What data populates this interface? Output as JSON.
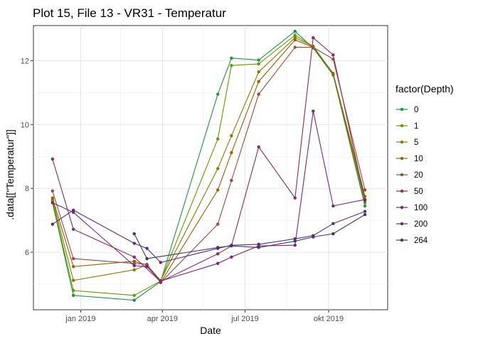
{
  "chart_data": {
    "type": "line",
    "title": "Plot 15, File 13 - VR31  -  Temperatur",
    "xlabel": "Date",
    "ylabel": ".data[[\"Temperatur\"]]",
    "legend_title": "factor(Depth)",
    "legend_position": "right",
    "grid": true,
    "xlim": [
      "2018-11-10",
      "2019-12-05"
    ],
    "ylim": [
      4.2,
      13.1
    ],
    "x_ticks": [
      {
        "date": "2019-01-01",
        "label": "jan 2019"
      },
      {
        "date": "2019-04-01",
        "label": "apr 2019"
      },
      {
        "date": "2019-07-01",
        "label": "jul 2019"
      },
      {
        "date": "2019-10-01",
        "label": "okt 2019"
      }
    ],
    "y_ticks": [
      6,
      8,
      10,
      12
    ],
    "x": [
      "2018-12-01",
      "2018-12-24",
      "2019-03-01",
      "2019-03-15",
      "2019-03-30",
      "2019-06-01",
      "2019-06-16",
      "2019-06-20",
      "2019-07-16",
      "2019-08-25",
      "2019-09-14",
      "2019-10-06",
      "2019-11-10"
    ],
    "series": [
      {
        "name": "0",
        "color": "#1a9641",
        "values": [
          7.55,
          4.65,
          4.5,
          null,
          5.08,
          10.95,
          12.08,
          null,
          12.02,
          12.92,
          12.4,
          11.55,
          7.45
        ]
      },
      {
        "name": "1",
        "color": "#669900",
        "values": [
          7.6,
          4.8,
          4.65,
          null,
          5.1,
          9.55,
          11.85,
          null,
          11.9,
          12.8,
          12.45,
          11.6,
          7.55
        ]
      },
      {
        "name": "5",
        "color": "#8a7a00",
        "values": [
          7.65,
          5.12,
          5.45,
          5.6,
          5.12,
          8.62,
          9.65,
          null,
          11.65,
          12.72,
          12.45,
          11.58,
          7.65
        ]
      },
      {
        "name": "10",
        "color": "#9c5f00",
        "values": [
          7.7,
          5.55,
          5.72,
          5.6,
          5.05,
          7.95,
          9.12,
          null,
          11.35,
          12.65,
          12.42,
          11.6,
          7.75
        ]
      },
      {
        "name": "20",
        "color": "#9a4a3a",
        "values": [
          7.92,
          5.8,
          5.65,
          5.62,
          5.05,
          6.88,
          8.25,
          null,
          10.95,
          12.42,
          12.42,
          12.05,
          7.95
        ]
      },
      {
        "name": "50",
        "color": "#8e2a5c",
        "values": [
          8.92,
          6.72,
          5.85,
          null,
          5.08,
          5.95,
          6.2,
          null,
          9.3,
          7.7,
          12.72,
          12.18,
          7.62
        ]
      },
      {
        "name": "100",
        "color": "#78287a",
        "values": [
          7.55,
          7.25,
          5.58,
          5.55,
          5.1,
          5.65,
          5.85,
          null,
          6.2,
          6.22,
          10.42,
          7.45,
          7.65
        ]
      },
      {
        "name": "200",
        "color": "#5a2d82",
        "values": [
          6.88,
          7.32,
          6.28,
          6.12,
          5.68,
          6.12,
          6.22,
          null,
          6.25,
          6.42,
          6.52,
          6.9,
          7.28
        ]
      },
      {
        "name": "264",
        "color": "#3a3a6e",
        "values": [
          null,
          null,
          6.58,
          5.8,
          null,
          6.15,
          6.2,
          null,
          6.15,
          6.35,
          6.48,
          6.58,
          7.18
        ]
      }
    ]
  }
}
